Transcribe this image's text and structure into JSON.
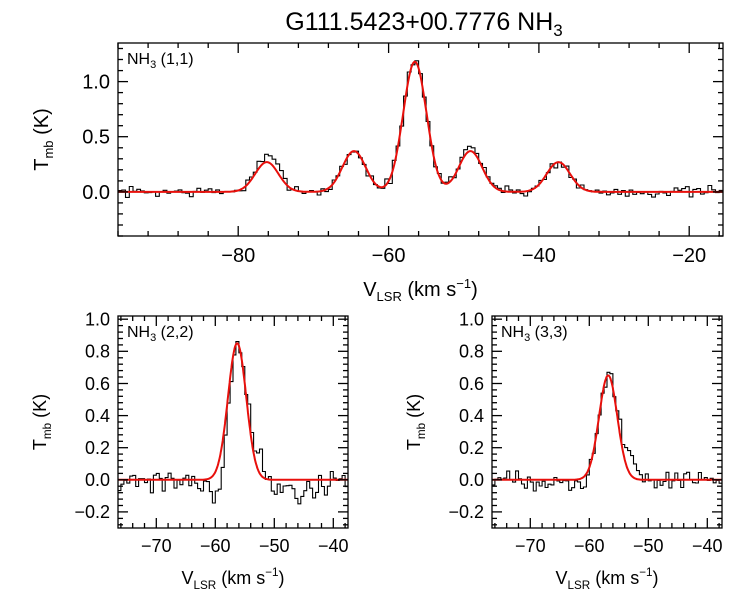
{
  "figure": {
    "title_main": "G111.5423+00.7776 NH",
    "title_sub": "3"
  },
  "chart_data": [
    {
      "id": "top",
      "type": "line",
      "panel_label": {
        "main": "NH",
        "sub": "3",
        "rest": " (1,1)"
      },
      "xlabel": {
        "main": "V",
        "sub": "LSR",
        "unit": " (km s",
        "sup": "−1",
        "close": ")"
      },
      "ylabel": {
        "main": "T",
        "sub": "mb",
        "unit": " (K)"
      },
      "xlim": [
        -96,
        -15.5
      ],
      "ylim": [
        -0.4,
        1.35
      ],
      "xticks": [
        -80,
        -60,
        -40,
        -20
      ],
      "xtick_labels": [
        "−80",
        "−60",
        "−40",
        "−20"
      ],
      "yticks": [
        0.0,
        0.5,
        1.0
      ],
      "ytick_labels": [
        "0.0",
        "0.5",
        "1.0"
      ],
      "gaussians": [
        {
          "center": -76.2,
          "amp": 0.27,
          "sigma": 1.55
        },
        {
          "center": -64.6,
          "amp": 0.37,
          "sigma": 1.55
        },
        {
          "center": -56.5,
          "amp": 1.18,
          "sigma": 1.55
        },
        {
          "center": -49.1,
          "amp": 0.37,
          "sigma": 1.55
        },
        {
          "center": -37.4,
          "amp": 0.27,
          "sigma": 1.55
        }
      ],
      "series": [
        {
          "name": "observed",
          "color": "#000000",
          "step": 0.5,
          "noise": 0.035,
          "seed": 7,
          "extra": [
            {
              "center": -75.0,
              "amp": 0.05,
              "sigma": 2.0
            },
            {
              "center": -48.5,
              "amp": 0.04,
              "sigma": 2.0
            }
          ]
        },
        {
          "name": "model",
          "color": "#e8100c"
        }
      ]
    },
    {
      "id": "left",
      "type": "line",
      "panel_label": {
        "main": "NH",
        "sub": "3",
        "rest": " (2,2)"
      },
      "xlabel": {
        "main": "V",
        "sub": "LSR",
        "unit": " (km s",
        "sup": "−1",
        "close": ")"
      },
      "ylabel": {
        "main": "T",
        "sub": "mb",
        "unit": " (K)"
      },
      "xlim": [
        -76.5,
        -37.5
      ],
      "ylim": [
        -0.3,
        1.02
      ],
      "xticks": [
        -70,
        -60,
        -50,
        -40
      ],
      "xtick_labels": [
        "−70",
        "−60",
        "−50",
        "−40"
      ],
      "yticks": [
        -0.2,
        0.0,
        0.2,
        0.4,
        0.6,
        0.8,
        1.0
      ],
      "ytick_labels": [
        "−0.2",
        "0.0",
        "0.2",
        "0.4",
        "0.6",
        "0.8",
        "1.0"
      ],
      "gaussians": [
        {
          "center": -56.3,
          "amp": 0.85,
          "sigma": 1.55
        }
      ],
      "series": [
        {
          "name": "observed",
          "color": "#000000",
          "step": 0.5,
          "noise": 0.055,
          "seed": 21,
          "extra": [
            {
              "center": -59.5,
              "amp": -0.18,
              "sigma": 1.2
            },
            {
              "center": -53.5,
              "amp": 0.12,
              "sigma": 1.2
            },
            {
              "center": -46.0,
              "amp": -0.08,
              "sigma": 2.5
            }
          ]
        },
        {
          "name": "model",
          "color": "#e8100c"
        }
      ]
    },
    {
      "id": "right",
      "type": "line",
      "panel_label": {
        "main": "NH",
        "sub": "3",
        "rest": " (3,3)"
      },
      "xlabel": {
        "main": "V",
        "sub": "LSR",
        "unit": " (km s",
        "sup": "−1",
        "close": ")"
      },
      "ylabel": {
        "main": "T",
        "sub": "mb",
        "unit": " (K)"
      },
      "xlim": [
        -76.5,
        -37.5
      ],
      "ylim": [
        -0.3,
        1.02
      ],
      "xticks": [
        -70,
        -60,
        -50,
        -40
      ],
      "xtick_labels": [
        "−70",
        "−60",
        "−50",
        "−40"
      ],
      "yticks": [
        -0.2,
        0.0,
        0.2,
        0.4,
        0.6,
        0.8,
        1.0
      ],
      "ytick_labels": [
        "−0.2",
        "0.0",
        "0.2",
        "0.4",
        "0.6",
        "0.8",
        "1.0"
      ],
      "gaussians": [
        {
          "center": -56.8,
          "amp": 0.65,
          "sigma": 1.55
        }
      ],
      "series": [
        {
          "name": "observed",
          "color": "#000000",
          "step": 0.5,
          "noise": 0.04,
          "seed": 33,
          "extra": [
            {
              "center": -61.0,
              "amp": -0.06,
              "sigma": 1.0
            },
            {
              "center": -53.5,
              "amp": 0.12,
              "sigma": 1.3
            }
          ]
        },
        {
          "name": "model",
          "color": "#e8100c"
        }
      ]
    }
  ]
}
